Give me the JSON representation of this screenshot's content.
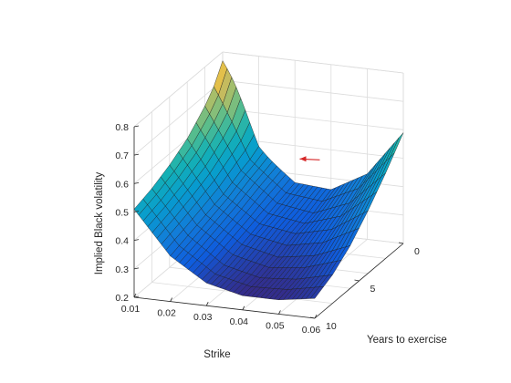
{
  "chart_data": {
    "type": "surface",
    "title": "",
    "xlabel": "Strike",
    "ylabel": "Years to exercise",
    "zlabel": "Implied Black volatility",
    "xlim": [
      0.01,
      0.06
    ],
    "ylim": [
      0,
      10
    ],
    "zlim": [
      0.2,
      0.8
    ],
    "x_ticks": [
      "0.01",
      "0.02",
      "0.03",
      "0.04",
      "0.05",
      "0.06"
    ],
    "y_ticks": [
      "0",
      "5",
      "10"
    ],
    "z_ticks": [
      "0.2",
      "0.3",
      "0.4",
      "0.5",
      "0.6",
      "0.7",
      "0.8"
    ],
    "grid": true,
    "colormap": "parula",
    "strike_grid": [
      0.01,
      0.02,
      0.03,
      0.04,
      0.05,
      0.06
    ],
    "years_grid": [
      0,
      2,
      4,
      6,
      8,
      10
    ],
    "surface_samples": [
      {
        "years": 0,
        "vol": [
          0.73,
          0.47,
          0.37,
          0.36,
          0.43,
          0.59
        ]
      },
      {
        "years": 2,
        "vol": [
          0.66,
          0.45,
          0.35,
          0.33,
          0.38,
          0.5
        ]
      },
      {
        "years": 4,
        "vol": [
          0.6,
          0.42,
          0.33,
          0.31,
          0.34,
          0.42
        ]
      },
      {
        "years": 6,
        "vol": [
          0.56,
          0.4,
          0.31,
          0.28,
          0.3,
          0.35
        ]
      },
      {
        "years": 8,
        "vol": [
          0.53,
          0.38,
          0.29,
          0.26,
          0.27,
          0.3
        ]
      },
      {
        "years": 10,
        "vol": [
          0.51,
          0.36,
          0.28,
          0.25,
          0.25,
          0.27
        ]
      }
    ],
    "annotation_marker": {
      "strike": 0.035,
      "years": 1.5,
      "vol": 0.5,
      "color": "#d62728"
    }
  }
}
